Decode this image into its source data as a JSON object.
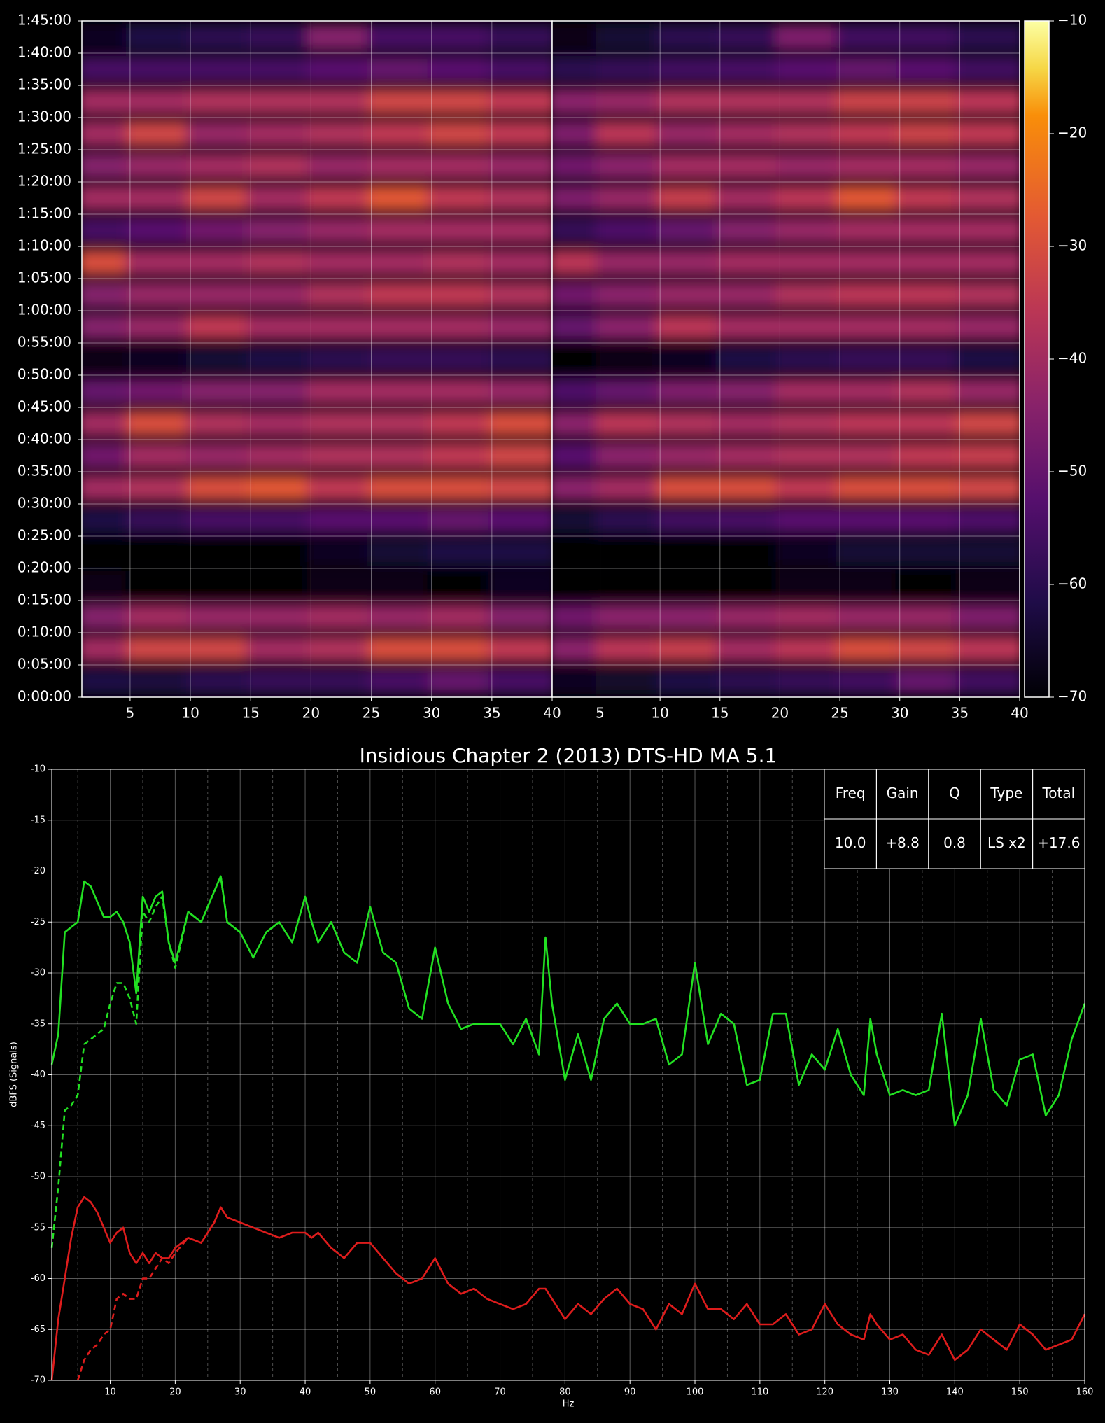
{
  "chart_data": [
    {
      "type": "heatmap",
      "xbins": [
        1,
        5,
        10,
        15,
        20,
        25,
        30,
        35,
        40
      ],
      "ybins": [
        0,
        300,
        600,
        900,
        1200,
        1500,
        1800,
        2100,
        2400,
        2700,
        3000,
        3300,
        3600,
        3900,
        4200,
        4500,
        4800,
        5100,
        5400,
        5700,
        6000,
        6300
      ],
      "xlim": [
        1,
        40
      ],
      "ylim": [
        0,
        6300
      ],
      "xticks": [
        5,
        10,
        15,
        20,
        25,
        30,
        35,
        40
      ],
      "yticks": [
        {
          "value": 0,
          "label": "0:00:00"
        },
        {
          "value": 300,
          "label": "0:05:00"
        },
        {
          "value": 600,
          "label": "0:10:00"
        },
        {
          "value": 900,
          "label": "0:15:00"
        },
        {
          "value": 1200,
          "label": "0:20:00"
        },
        {
          "value": 1500,
          "label": "0:25:00"
        },
        {
          "value": 1800,
          "label": "0:30:00"
        },
        {
          "value": 2100,
          "label": "0:35:00"
        },
        {
          "value": 2400,
          "label": "0:40:00"
        },
        {
          "value": 2700,
          "label": "0:45:00"
        },
        {
          "value": 3000,
          "label": "0:50:00"
        },
        {
          "value": 3300,
          "label": "0:55:00"
        },
        {
          "value": 3600,
          "label": "1:00:00"
        },
        {
          "value": 3900,
          "label": "1:05:00"
        },
        {
          "value": 4200,
          "label": "1:10:00"
        },
        {
          "value": 4500,
          "label": "1:15:00"
        },
        {
          "value": 4800,
          "label": "1:20:00"
        },
        {
          "value": 5100,
          "label": "1:25:00"
        },
        {
          "value": 5400,
          "label": "1:30:00"
        },
        {
          "value": 5700,
          "label": "1:35:00"
        },
        {
          "value": 6000,
          "label": "1:40:00"
        },
        {
          "value": 6300,
          "label": "1:45:00"
        }
      ],
      "clim": [
        -70,
        -10
      ],
      "cticks": [
        {
          "value": -10,
          "label": "−10"
        },
        {
          "value": -20,
          "label": "−20"
        },
        {
          "value": -30,
          "label": "−30"
        },
        {
          "value": -40,
          "label": "−40"
        },
        {
          "value": -50,
          "label": "−50"
        },
        {
          "value": -60,
          "label": "−60"
        },
        {
          "value": -70,
          "label": "−70"
        }
      ],
      "colormap": "inferno",
      "grid": true,
      "panels": [
        {
          "z": [
            [
              -62,
              -63,
              -60,
              -58,
              -58,
              -55,
              -50,
              -55
            ],
            [
              -40,
              -32,
              -32,
              -40,
              -38,
              -30,
              -30,
              -35
            ],
            [
              -45,
              -40,
              -42,
              -42,
              -40,
              -42,
              -40,
              -45
            ],
            [
              -68,
              -70,
              -70,
              -70,
              -68,
              -68,
              -70,
              -66
            ],
            [
              -70,
              -70,
              -70,
              -70,
              -66,
              -64,
              -62,
              -62
            ],
            [
              -62,
              -58,
              -55,
              -55,
              -52,
              -52,
              -50,
              -52
            ],
            [
              -40,
              -38,
              -30,
              -28,
              -35,
              -30,
              -30,
              -32
            ],
            [
              -48,
              -40,
              -42,
              -40,
              -38,
              -38,
              -35,
              -32
            ],
            [
              -40,
              -30,
              -38,
              -40,
              -38,
              -38,
              -35,
              -30
            ],
            [
              -50,
              -48,
              -45,
              -45,
              -40,
              -40,
              -40,
              -42
            ],
            [
              -68,
              -66,
              -64,
              -62,
              -60,
              -58,
              -58,
              -60
            ],
            [
              -45,
              -42,
              -35,
              -40,
              -40,
              -40,
              -40,
              -42
            ],
            [
              -45,
              -42,
              -42,
              -42,
              -38,
              -35,
              -35,
              -38
            ],
            [
              -30,
              -40,
              -40,
              -38,
              -40,
              -40,
              -38,
              -40
            ],
            [
              -55,
              -52,
              -48,
              -45,
              -42,
              -40,
              -40,
              -40
            ],
            [
              -40,
              -40,
              -32,
              -40,
              -35,
              -28,
              -35,
              -38
            ],
            [
              -45,
              -42,
              -40,
              -38,
              -42,
              -40,
              -40,
              -42
            ],
            [
              -40,
              -32,
              -42,
              -40,
              -38,
              -35,
              -32,
              -35
            ],
            [
              -40,
              -40,
              -38,
              -38,
              -38,
              -32,
              -32,
              -35
            ],
            [
              -55,
              -55,
              -55,
              -55,
              -52,
              -50,
              -52,
              -55
            ],
            [
              -66,
              -62,
              -60,
              -58,
              -45,
              -55,
              -55,
              -58
            ]
          ]
        },
        {
          "z": [
            [
              -66,
              -65,
              -62,
              -60,
              -58,
              -56,
              -50,
              -56
            ],
            [
              -44,
              -36,
              -34,
              -40,
              -36,
              -30,
              -32,
              -36
            ],
            [
              -48,
              -44,
              -44,
              -42,
              -40,
              -42,
              -42,
              -46
            ],
            [
              -70,
              -70,
              -70,
              -70,
              -68,
              -68,
              -70,
              -68
            ],
            [
              -70,
              -70,
              -70,
              -70,
              -66,
              -64,
              -64,
              -64
            ],
            [
              -64,
              -60,
              -56,
              -55,
              -52,
              -52,
              -52,
              -54
            ],
            [
              -44,
              -40,
              -30,
              -30,
              -35,
              -30,
              -30,
              -32
            ],
            [
              -52,
              -44,
              -42,
              -40,
              -38,
              -38,
              -35,
              -34
            ],
            [
              -44,
              -36,
              -38,
              -40,
              -38,
              -36,
              -36,
              -32
            ],
            [
              -54,
              -50,
              -46,
              -45,
              -40,
              -40,
              -38,
              -42
            ],
            [
              -70,
              -68,
              -66,
              -62,
              -60,
              -58,
              -58,
              -62
            ],
            [
              -50,
              -44,
              -36,
              -40,
              -40,
              -40,
              -40,
              -42
            ],
            [
              -48,
              -44,
              -42,
              -42,
              -38,
              -36,
              -36,
              -38
            ],
            [
              -36,
              -42,
              -42,
              -40,
              -40,
              -40,
              -40,
              -40
            ],
            [
              -58,
              -54,
              -50,
              -45,
              -42,
              -40,
              -40,
              -40
            ],
            [
              -46,
              -42,
              -34,
              -40,
              -36,
              -28,
              -35,
              -38
            ],
            [
              -48,
              -44,
              -40,
              -40,
              -42,
              -40,
              -40,
              -42
            ],
            [
              -46,
              -36,
              -42,
              -40,
              -38,
              -35,
              -33,
              -35
            ],
            [
              -44,
              -42,
              -38,
              -38,
              -38,
              -33,
              -33,
              -36
            ],
            [
              -60,
              -58,
              -56,
              -55,
              -52,
              -50,
              -52,
              -56
            ],
            [
              -68,
              -64,
              -60,
              -58,
              -46,
              -56,
              -56,
              -60
            ]
          ]
        }
      ]
    },
    {
      "type": "line",
      "title": "Insidious Chapter 2 (2013) DTS-HD MA 5.1",
      "x_label": "Hz",
      "y_label": "dBFS (Signals)",
      "xlim": [
        1,
        160
      ],
      "ylim": [
        -70,
        -10
      ],
      "xticks": [
        10,
        20,
        30,
        40,
        50,
        60,
        70,
        80,
        90,
        100,
        110,
        120,
        130,
        140,
        150,
        160
      ],
      "xminor_ticks": [
        5,
        15,
        25,
        35,
        45,
        55,
        65,
        75,
        85,
        95,
        105,
        115,
        125,
        135,
        145,
        155
      ],
      "yticks": [
        -10,
        -15,
        -20,
        -25,
        -30,
        -35,
        -40,
        -45,
        -50,
        -55,
        -60,
        -65,
        -70
      ],
      "grid": true,
      "x": [
        1,
        2,
        3,
        4,
        5,
        6,
        7,
        8,
        9,
        10,
        11,
        12,
        13,
        14,
        15,
        16,
        17,
        18,
        19,
        20,
        22,
        24,
        26,
        27,
        28,
        30,
        32,
        34,
        36,
        38,
        40,
        41,
        42,
        44,
        46,
        48,
        50,
        52,
        54,
        56,
        58,
        60,
        62,
        64,
        66,
        68,
        70,
        72,
        74,
        76,
        77,
        78,
        80,
        82,
        84,
        86,
        88,
        90,
        92,
        94,
        96,
        98,
        100,
        102,
        104,
        106,
        108,
        110,
        112,
        114,
        116,
        118,
        120,
        122,
        124,
        126,
        127,
        128,
        130,
        132,
        134,
        136,
        138,
        140,
        142,
        144,
        146,
        148,
        150,
        152,
        154,
        156,
        158,
        160
      ],
      "series": [
        {
          "color": "#22e022",
          "dash": false,
          "values": [
            -39,
            -36,
            -26,
            -25.5,
            -25,
            -21,
            -21.5,
            -23,
            -24.5,
            -24.5,
            -24,
            -25,
            -27,
            -32,
            -22.5,
            -24,
            -22.5,
            -22,
            -27,
            -29,
            -24,
            -25,
            -22,
            -20.5,
            -25,
            -26,
            -28.5,
            -26,
            -25,
            -27,
            -22.5,
            -25,
            -27,
            -25,
            -28,
            -29,
            -23.5,
            -28,
            -29,
            -33.5,
            -34.5,
            -27.5,
            -33,
            -35.5,
            -35,
            -35,
            -35,
            -37,
            -34.5,
            -38,
            -26.5,
            -33,
            -40.5,
            -36,
            -40.5,
            -34.5,
            -33,
            -35,
            -35,
            -34.5,
            -39,
            -38,
            -29,
            -37,
            -34,
            -35,
            -41,
            -40.5,
            -34,
            -34,
            -41,
            -38,
            -39.5,
            -35.5,
            -40,
            -42,
            -34.5,
            -38,
            -42,
            -41.5,
            -42,
            -41.5,
            -34,
            -45,
            -42,
            -34.5,
            -41.5,
            -43,
            -38.5,
            -38,
            -44,
            -42,
            -36.5,
            -33
          ]
        },
        {
          "color": "#dd1c1c",
          "dash": false,
          "values": [
            -70,
            -64,
            -60,
            -56,
            -53,
            -52,
            -52.5,
            -53.5,
            -55,
            -56.5,
            -55.5,
            -55,
            -57.5,
            -58.5,
            -57.5,
            -58.5,
            -57.5,
            -58,
            -58,
            -57,
            -56,
            -56.5,
            -54.5,
            -53,
            -54,
            -54.5,
            -55,
            -55.5,
            -56,
            -55.5,
            -55.5,
            -56,
            -55.5,
            -57,
            -58,
            -56.5,
            -56.5,
            -58,
            -59.5,
            -60.5,
            -60,
            -58,
            -60.5,
            -61.5,
            -61,
            -62,
            -62.5,
            -63,
            -62.5,
            -61,
            -61,
            -62,
            -64,
            -62.5,
            -63.5,
            -62,
            -61,
            -62.5,
            -63,
            -65,
            -62.5,
            -63.5,
            -60.5,
            -63,
            -63,
            -64,
            -62.5,
            -64.5,
            -64.5,
            -63.5,
            -65.5,
            -65,
            -62.5,
            -64.5,
            -65.5,
            -66,
            -63.5,
            -64.5,
            -66,
            -65.5,
            -67,
            -67.5,
            -65.5,
            -68,
            -67,
            -65,
            -66,
            -67,
            -64.5,
            -65.5,
            -67,
            -66.5,
            -66,
            -63.5
          ]
        },
        {
          "color": "#22e022",
          "dash": true,
          "x": [
            1,
            2,
            3,
            4,
            5,
            6,
            7,
            8,
            9,
            10,
            11,
            12,
            13,
            14,
            15,
            16,
            17,
            18,
            19,
            20,
            22,
            24,
            26,
            27,
            28,
            30
          ],
          "values": [
            -57,
            -51,
            -43.5,
            -43,
            -42,
            -37,
            -36.5,
            -36,
            -35.5,
            -33,
            -31,
            -31,
            -32.5,
            -35,
            -24,
            -25,
            -23.5,
            -22.5,
            -27,
            -29.5,
            -24,
            -25,
            -22,
            -20.5,
            -25,
            -26
          ]
        },
        {
          "color": "#dd1c1c",
          "dash": true,
          "x": [
            5,
            6,
            7,
            8,
            9,
            10,
            11,
            12,
            13,
            14,
            15,
            16,
            17,
            18,
            19,
            20,
            22,
            24,
            26,
            27,
            28,
            30
          ],
          "values": [
            -70,
            -68,
            -67,
            -66.5,
            -65.5,
            -65,
            -62,
            -61.5,
            -62,
            -62,
            -60,
            -60,
            -59,
            -58,
            -58.5,
            -57.5,
            -56,
            -56.5,
            -54.5,
            -53,
            -54,
            -54.5
          ]
        }
      ],
      "table": {
        "columns": [
          "Freq",
          "Gain",
          "Q",
          "Type",
          "Total"
        ],
        "rows": [
          [
            "10.0",
            "+8.8",
            "0.8",
            "LS x2",
            "+17.6"
          ]
        ]
      }
    }
  ]
}
